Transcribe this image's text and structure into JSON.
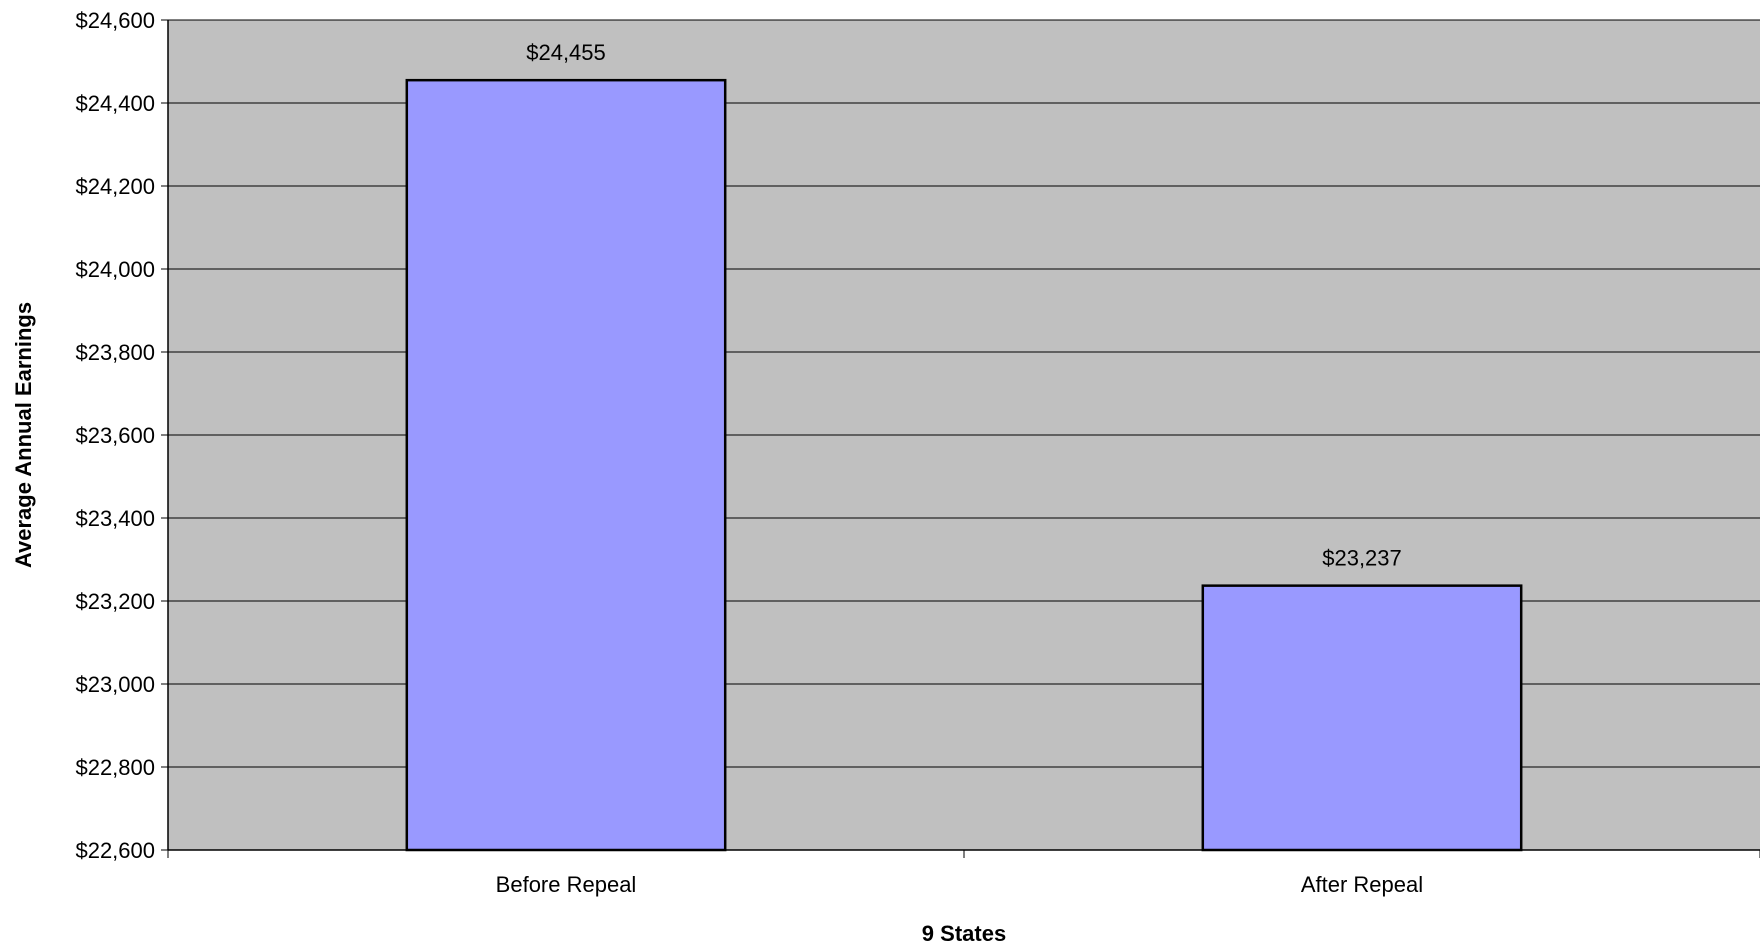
{
  "chart_data": {
    "type": "bar",
    "title": "",
    "xlabel": "9 States",
    "ylabel": "Average Annual Earnings",
    "categories": [
      "Before Repeal",
      "After Repeal"
    ],
    "values": [
      24455,
      23237
    ],
    "data_labels": [
      "$24,455",
      "$23,237"
    ],
    "ylim": [
      22600,
      24600
    ],
    "yticks": [
      22600,
      22800,
      23000,
      23200,
      23400,
      23600,
      23800,
      24000,
      24200,
      24400,
      24600
    ],
    "ytick_labels": [
      "$22,600",
      "$22,800",
      "$23,000",
      "$23,200",
      "$23,400",
      "$23,600",
      "$23,800",
      "$24,000",
      "$24,200",
      "$24,400",
      "$24,600"
    ],
    "grid": true,
    "legend": "none",
    "colors": {
      "plot_background": "#c0c0c0",
      "bar_fill": "#9999ff",
      "bar_stroke": "#000000",
      "gridline": "#000000"
    }
  }
}
